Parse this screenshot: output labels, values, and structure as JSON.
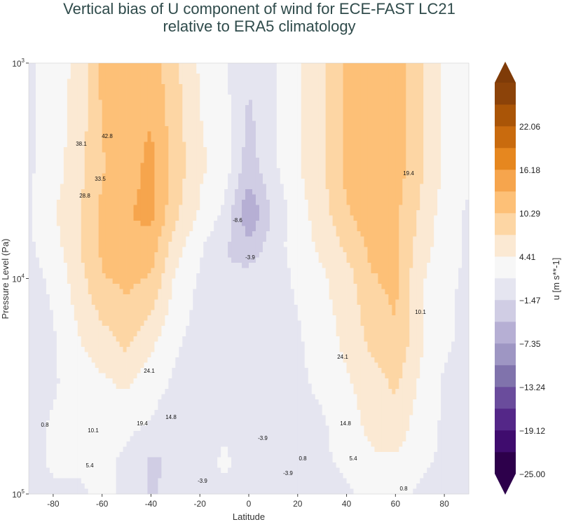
{
  "chart_data": {
    "type": "heatmap",
    "title_line1": "Vertical bias of U component of wind for ECE-FAST LC21",
    "title_line2": "relative to ERA5 climatology",
    "xlabel": "Latitude",
    "ylabel": "Pressure Level (Pa)",
    "xlim": [
      -90,
      90
    ],
    "ylim": [
      1000,
      100000
    ],
    "y_scale": "log",
    "y_inverted": true,
    "x_ticks": [
      "-80",
      "-60",
      "-40",
      "-20",
      "0",
      "20",
      "40",
      "60",
      "80"
    ],
    "y_ticks": [
      {
        "base": "10",
        "exp": "3"
      },
      {
        "base": "10",
        "exp": "4"
      },
      {
        "base": "10",
        "exp": "5"
      }
    ],
    "colorbar": {
      "label": "u [m s**-1]",
      "colormap": "PuOr_r",
      "extend": "both",
      "levels_min": -25.0,
      "level_step": 2.94,
      "n_bands": 18,
      "tick_labels": [
        "22.06",
        "16.18",
        "10.29",
        "4.41",
        "−1.47",
        "−7.35",
        "−13.24",
        "−19.12",
        "−25.00"
      ],
      "colors": [
        "#2d004b",
        "#3f0c6e",
        "#542788",
        "#6a4c9c",
        "#8073ac",
        "#9e96c3",
        "#b6afd4",
        "#d0cde4",
        "#e5e5f0",
        "#f7f7f7",
        "#fbe9d3",
        "#fdd6a4",
        "#fdc077",
        "#f6a54d",
        "#e6871f",
        "#c96b0e",
        "#aa5507",
        "#8c4309"
      ],
      "extend_colors": [
        "#2d004b",
        "#7f3b08"
      ]
    },
    "latitudes": [
      -90,
      -80,
      -70,
      -60,
      -50,
      -40,
      -30,
      -20,
      -10,
      0,
      10,
      20,
      30,
      40,
      50,
      60,
      70,
      80,
      90
    ],
    "pressure_levels": [
      1000,
      3000,
      5000,
      7000,
      10000,
      20000,
      30000,
      50000,
      70000,
      100000
    ],
    "values": [
      [
        1,
        3,
        5,
        11,
        12,
        12,
        8,
        4,
        2,
        -1,
        1,
        4,
        7,
        11,
        12,
        12,
        8,
        4,
        2
      ],
      [
        1,
        3,
        6,
        10,
        12,
        14,
        9,
        5,
        3,
        -3,
        1,
        4,
        7,
        11,
        12,
        12,
        8,
        4,
        2
      ],
      [
        1,
        4,
        7,
        11,
        13,
        14,
        8,
        4,
        1,
        -7,
        -1,
        3,
        6,
        10,
        12,
        11,
        7,
        3,
        1
      ],
      [
        1,
        3,
        7,
        11,
        13,
        12,
        6,
        2,
        -1,
        -4,
        0,
        3,
        5,
        8,
        11,
        11,
        6,
        3,
        1
      ],
      [
        0.5,
        2,
        6,
        10,
        11,
        10,
        4,
        1,
        -1.5,
        0,
        0,
        2,
        4,
        6,
        10,
        11,
        5,
        2,
        1
      ],
      [
        0,
        1,
        4,
        6,
        8,
        5,
        2,
        0,
        0,
        0,
        0,
        1,
        3,
        5,
        8,
        10,
        5,
        2,
        0.5
      ],
      [
        0,
        1,
        3,
        4,
        5,
        3,
        1,
        0,
        0,
        0,
        0,
        1,
        2,
        4,
        6,
        8,
        4,
        1,
        0
      ],
      [
        0,
        2,
        3,
        3,
        2,
        1,
        -1,
        0,
        1,
        0,
        0,
        1,
        1,
        3,
        5,
        6,
        3,
        1,
        0
      ],
      [
        0,
        2,
        2,
        2,
        1,
        -2,
        -1,
        0,
        2,
        0,
        0,
        0,
        1,
        2,
        4,
        4,
        2,
        1,
        0
      ],
      [
        0,
        1,
        1,
        2,
        1,
        -2,
        0,
        0,
        1,
        0,
        0,
        0,
        0,
        1,
        2,
        2,
        1,
        0,
        0
      ]
    ],
    "contour_labels": [
      "42.8",
      "38.1",
      "33.5",
      "28.8",
      "24.1",
      "19.4",
      "14.8",
      "10.1",
      "5.4",
      "0.8",
      "-3.9",
      "-8.6",
      "19.4",
      "10.1",
      "24.1",
      "14.8",
      "5.4",
      "0.8",
      "-3.9",
      "-3.9",
      "0.8",
      "-3.9"
    ]
  }
}
